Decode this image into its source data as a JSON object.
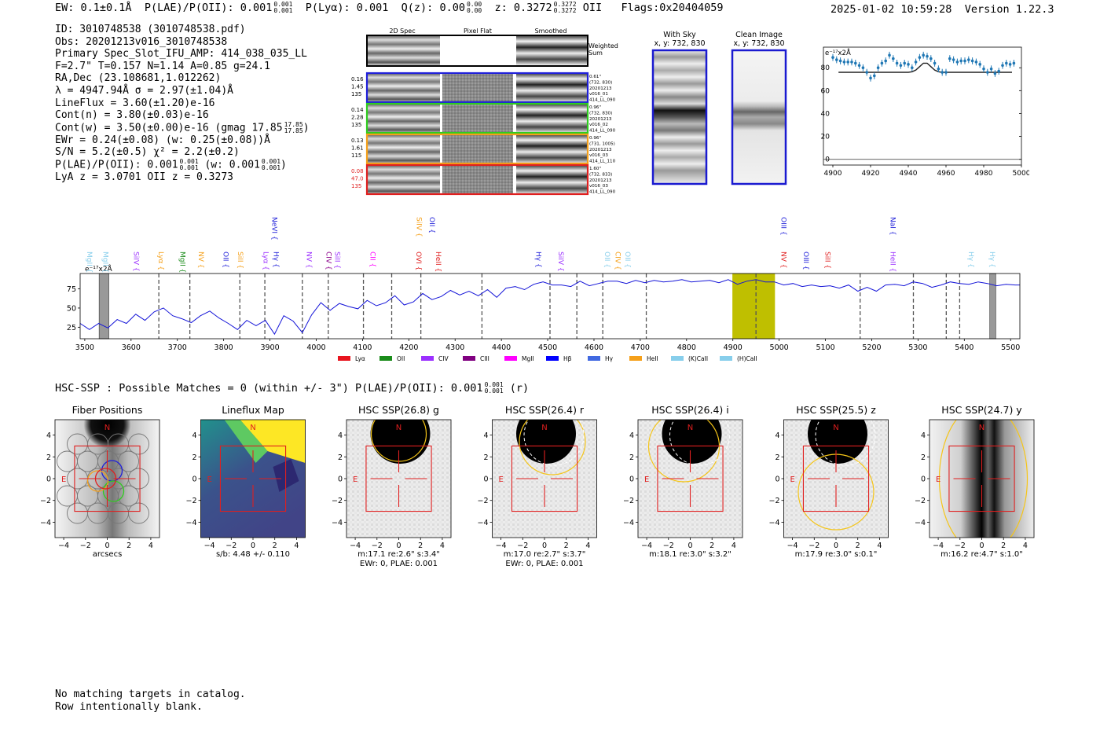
{
  "header": {
    "ew": "EW: 0.1±0.1Å",
    "plae_label": "P(LAE)/P(OII): 0.001",
    "plae_hi": "0.001",
    "plae_lo": "0.001",
    "plya": "P(Lyα): 0.001",
    "qz_label": "Q(z): 0.00",
    "qz_hi": "0.00",
    "qz_lo": "0.00",
    "z_label": "z: 0.3272",
    "z_hi": "0.3272",
    "z_lo": "0.3272",
    "z_line": "OII",
    "flags": "Flags:0x20404059",
    "datetime": "2025-01-02 10:59:28",
    "version": "Version 1.22.3"
  },
  "info": {
    "id": "ID: 3010748538 (3010748538.pdf)",
    "obs": "Obs: 20201213v016_3010748538",
    "primary": "Primary Spec_Slot_IFU_AMP: 414_038_035_LL",
    "fit": "F=2.7\"  T=0.157  N=1.14  A=0.85  g=24.1",
    "radec": "RA,Dec (23.108681,1.012262)",
    "lambda": "λ = 4947.94Å  σ = 2.97(±1.04)Å",
    "lineflux": "LineFlux = 3.60(±1.20)e-16",
    "contn": "Cont(n) = 3.80(±0.03)e-16",
    "contw": "Cont(w) = 3.50(±0.00)e-16 (gmag 17.85",
    "contw_hi": "17.85",
    "contw_lo": "17.85",
    "contw_end": ")",
    "ewr": "EWr = 0.24(±0.08) (w: 0.25(±0.08))Å",
    "sn": "S/N = 5.2(±0.5)  χ² = 2.2(±0.2)",
    "plae": "P(LAE)/P(OII): 0.001",
    "plae_hi": "0.001",
    "plae_lo": "0.001",
    "plae_w": "(w: 0.001",
    "plae_w_hi": "0.001",
    "plae_w_lo": "0.001",
    "plae_w_end": ")",
    "lyaz": "LyA z = 3.0701  OII z = 0.3273"
  },
  "spec_panel": {
    "col1": "2D Spec",
    "col2": "Pixel Flat",
    "col3": "Smoothed",
    "weighted": "Weighted",
    "sum": "Sum",
    "rows": [
      {
        "l1": "0.16",
        "l2": "1.45",
        "l3": "135",
        "color": "#1f1fd9",
        "r1": "0.61\"",
        "r2": "(732, 830)",
        "r3": "20201213",
        "r4": "v016_01",
        "r5": "414_LL_090"
      },
      {
        "l1": "0.14",
        "l2": "2.28",
        "l3": "135",
        "color": "#2ecc1f",
        "r1": "0.96\"",
        "r2": "(732, 830)",
        "r3": "20201213",
        "r4": "v016_02",
        "r5": "414_LL_090"
      },
      {
        "l1": "0.13",
        "l2": "1.61",
        "l3": "115",
        "color": "#f5a01a",
        "r1": "0.96\"",
        "r2": "(731, 1005)",
        "r3": "20201213",
        "r4": "v016_03",
        "r5": "414_LL_110"
      },
      {
        "l1": "0.08",
        "l2": "47.0",
        "l3": "135",
        "color": "#e01f1f",
        "r1": "1.60\"",
        "r2": "(732, 833)",
        "r3": "20201213",
        "r4": "v016_03",
        "r5": "414_LL_090"
      }
    ]
  },
  "sky_panel": {
    "title": "With Sky",
    "coords": "x, y: 732, 830"
  },
  "clean_panel": {
    "title": "Clean Image",
    "coords": "x, y: 732, 830"
  },
  "chart_data": [
    {
      "type": "scatter",
      "name": "line-zoom",
      "title": "",
      "unit_label": "e⁻¹⁷x2Å",
      "xlim": [
        4895,
        5000
      ],
      "ylim": [
        -5,
        98
      ],
      "xticks": [
        "4900",
        "4920",
        "4940",
        "4960",
        "4980",
        "5000"
      ],
      "xtick_values": [
        4900,
        4920,
        4940,
        4960,
        4980,
        5000
      ],
      "yticks": [
        "0",
        "20",
        "40",
        "60",
        "80"
      ],
      "ytick_values": [
        0,
        20,
        40,
        60,
        80
      ],
      "points_x": [
        4900,
        4902,
        4904,
        4906,
        4908,
        4910,
        4912,
        4914,
        4916,
        4918,
        4920,
        4922,
        4924,
        4926,
        4928,
        4930,
        4932,
        4934,
        4936,
        4938,
        4940,
        4942,
        4944,
        4946,
        4948,
        4950,
        4952,
        4954,
        4956,
        4958,
        4960,
        4962,
        4964,
        4966,
        4968,
        4970,
        4972,
        4974,
        4976,
        4978,
        4980,
        4982,
        4984,
        4986,
        4988,
        4990,
        4992,
        4994,
        4996
      ],
      "points_y": [
        89,
        87,
        86,
        85,
        85,
        85,
        84,
        82,
        80,
        76,
        71,
        73,
        80,
        84,
        86,
        91,
        88,
        84,
        82,
        84,
        83,
        80,
        85,
        89,
        91,
        90,
        88,
        84,
        79,
        76,
        76,
        88,
        87,
        85,
        86,
        86,
        87,
        86,
        85,
        83,
        79,
        76,
        79,
        75,
        77,
        82,
        84,
        83,
        84
      ],
      "model_x": [
        4903,
        4940,
        4942,
        4944,
        4946,
        4948,
        4950,
        4952,
        4954,
        4956,
        4958,
        4995
      ],
      "model_y": [
        76,
        76,
        76.5,
        78,
        81,
        84,
        84,
        81,
        78,
        76.5,
        76,
        76
      ]
    },
    {
      "type": "line",
      "name": "full-spectrum",
      "unit_label": "e⁻¹⁷x2Å",
      "xlim": [
        3490,
        5520
      ],
      "ylim": [
        10,
        95
      ],
      "xticks": [
        "3500",
        "3600",
        "3700",
        "3800",
        "3900",
        "4000",
        "4100",
        "4200",
        "4300",
        "4400",
        "4500",
        "4600",
        "4700",
        "4800",
        "4900",
        "5000",
        "5100",
        "5200",
        "5300",
        "5400",
        "5500"
      ],
      "xtick_values": [
        3500,
        3600,
        3700,
        3800,
        3900,
        4000,
        4100,
        4200,
        4300,
        4400,
        4500,
        4600,
        4700,
        4800,
        4900,
        5000,
        5100,
        5200,
        5300,
        5400,
        5500
      ],
      "yticks": [
        "25",
        "50",
        "75"
      ],
      "ytick_values": [
        25,
        50,
        75
      ],
      "x": [
        3490,
        3510,
        3530,
        3550,
        3570,
        3590,
        3610,
        3630,
        3650,
        3670,
        3690,
        3710,
        3730,
        3750,
        3770,
        3790,
        3810,
        3830,
        3850,
        3870,
        3890,
        3910,
        3930,
        3950,
        3970,
        3990,
        4010,
        4030,
        4050,
        4070,
        4090,
        4110,
        4130,
        4150,
        4170,
        4190,
        4210,
        4230,
        4250,
        4270,
        4290,
        4310,
        4330,
        4350,
        4370,
        4390,
        4410,
        4430,
        4450,
        4470,
        4490,
        4510,
        4530,
        4550,
        4570,
        4590,
        4610,
        4630,
        4650,
        4670,
        4690,
        4710,
        4730,
        4750,
        4770,
        4790,
        4810,
        4830,
        4850,
        4870,
        4890,
        4910,
        4930,
        4950,
        4970,
        4990,
        5010,
        5030,
        5050,
        5070,
        5090,
        5110,
        5130,
        5150,
        5170,
        5190,
        5210,
        5230,
        5250,
        5270,
        5290,
        5310,
        5330,
        5350,
        5370,
        5390,
        5410,
        5430,
        5450,
        5470,
        5490,
        5510,
        5520
      ],
      "y": [
        30,
        22,
        30,
        24,
        35,
        30,
        42,
        34,
        45,
        50,
        40,
        36,
        31,
        40,
        46,
        37,
        30,
        22,
        34,
        27,
        34,
        16,
        40,
        33,
        18,
        41,
        57,
        47,
        56,
        52,
        49,
        60,
        53,
        57,
        66,
        54,
        58,
        69,
        61,
        65,
        73,
        67,
        72,
        66,
        74,
        64,
        76,
        78,
        74,
        81,
        84,
        80,
        80,
        78,
        85,
        79,
        82,
        85,
        85,
        82,
        86,
        83,
        86,
        84,
        85,
        87,
        84,
        85,
        86,
        83,
        87,
        81,
        85,
        87,
        84,
        84,
        80,
        82,
        78,
        80,
        78,
        79,
        76,
        80,
        72,
        77,
        72,
        80,
        81,
        79,
        84,
        82,
        77,
        80,
        84,
        82,
        81,
        84,
        82,
        79,
        81,
        80,
        80
      ],
      "dashed_lines": [
        3660,
        3727,
        3835,
        3889,
        3970,
        4026,
        4102,
        4163,
        4226,
        4358,
        4505,
        4563,
        4619,
        4713,
        4950,
        5175,
        5290,
        5361,
        5390
      ],
      "highlight": [
        4899,
        4991
      ],
      "masked": [
        [
          3531,
          3552
        ],
        [
          5455,
          5468
        ]
      ],
      "line_labels": [
        {
          "label": "MgII",
          "x": 3500,
          "color": "#87ceeb",
          "row": 0
        },
        {
          "label": "MgII",
          "x": 3535,
          "color": "#87ceeb",
          "row": 0
        },
        {
          "label": "SiIV",
          "x": 3601,
          "color": "#9b30ff",
          "row": 0
        },
        {
          "label": "Lyα",
          "x": 3655,
          "color": "#f5a01a",
          "row": 0
        },
        {
          "label": "MgII",
          "x": 3701,
          "color": "#1a8c1a",
          "row": 0
        },
        {
          "label": "NV",
          "x": 3741,
          "color": "#f5a01a",
          "row": 0
        },
        {
          "label": "OII",
          "x": 3795,
          "color": "#1f1fd9",
          "row": 0
        },
        {
          "label": "SiII",
          "x": 3826,
          "color": "#f5a01a",
          "row": 0
        },
        {
          "label": "Lyα",
          "x": 3881,
          "color": "#9b30ff",
          "row": 0
        },
        {
          "label": "Hγ",
          "x": 3903,
          "color": "#1f1fd9",
          "row": 0
        },
        {
          "label": "NeVI",
          "x": 3900,
          "color": "#1f1fd9",
          "row": 1
        },
        {
          "label": "NV",
          "x": 3975,
          "color": "#9b30ff",
          "row": 0
        },
        {
          "label": "CIV",
          "x": 4017,
          "color": "#8b008b",
          "row": 0
        },
        {
          "label": "SiII",
          "x": 4036,
          "color": "#9b30ff",
          "row": 0
        },
        {
          "label": "CII",
          "x": 4112,
          "color": "#ff00ff",
          "row": 0
        },
        {
          "label": "OVI",
          "x": 4211,
          "color": "#e01f1f",
          "row": 0
        },
        {
          "label": "SiIV",
          "x": 4212,
          "color": "#f5a01a",
          "row": 1
        },
        {
          "label": "OII",
          "x": 4240,
          "color": "#1f1fd9",
          "row": 1
        },
        {
          "label": "HeII",
          "x": 4254,
          "color": "#e01f1f",
          "row": 0
        },
        {
          "label": "Hγ",
          "x": 4470,
          "color": "#1f1fd9",
          "row": 0
        },
        {
          "label": "SiIV",
          "x": 4519,
          "color": "#9b30ff",
          "row": 0
        },
        {
          "label": "OII",
          "x": 4619,
          "color": "#87ceeb",
          "row": 0
        },
        {
          "label": "CIV",
          "x": 4642,
          "color": "#f5a01a",
          "row": 0
        },
        {
          "label": "OII",
          "x": 4663,
          "color": "#87ceeb",
          "row": 0
        },
        {
          "label": "OIII",
          "x": 5000,
          "color": "#1f1fd9",
          "row": 1
        },
        {
          "label": "NV",
          "x": 5000,
          "color": "#e01f1f",
          "row": 0
        },
        {
          "label": "OIII",
          "x": 5048,
          "color": "#1f1fd9",
          "row": 0
        },
        {
          "label": "SiII",
          "x": 5095,
          "color": "#e01f1f",
          "row": 0
        },
        {
          "label": "NaI",
          "x": 5236,
          "color": "#1f1fd9",
          "row": 1
        },
        {
          "label": "HeII",
          "x": 5236,
          "color": "#9b30ff",
          "row": 0
        },
        {
          "label": "Hγ",
          "x": 5405,
          "color": "#87ceeb",
          "row": 0
        },
        {
          "label": "Hγ",
          "x": 5450,
          "color": "#87ceeb",
          "row": 0
        }
      ],
      "legend": [
        {
          "label": "Lyα",
          "color": "#e8141e"
        },
        {
          "label": "OII",
          "color": "#1a8c1a"
        },
        {
          "label": "CIV",
          "color": "#9b30ff"
        },
        {
          "label": "CIII",
          "color": "#800080"
        },
        {
          "label": "MgII",
          "color": "#ff00ff"
        },
        {
          "label": "Hβ",
          "color": "#0000ff"
        },
        {
          "label": "Hγ",
          "color": "#4169e1"
        },
        {
          "label": "HeII",
          "color": "#f5a01a"
        },
        {
          "label": "(K)CaII",
          "color": "#87ceeb"
        },
        {
          "label": "(H)CaII",
          "color": "#87ceeb"
        }
      ]
    }
  ],
  "hsc": {
    "title": "HSC-SSP : Possible Matches = 0 (within +/- 3\")  P(LAE)/P(OII): 0.001",
    "plae_hi": "0.001",
    "plae_lo": "0.001",
    "band": "(r)",
    "compass_n": "N",
    "compass_e": "E",
    "xticks": [
      "−4",
      "−2",
      "0",
      "2",
      "4"
    ],
    "yticks": [
      "4",
      "2",
      "0",
      "−2",
      "−4"
    ],
    "panels": [
      {
        "title": "Fiber Positions",
        "line1": "arcsecs",
        "line2": "",
        "kind": "fiber"
      },
      {
        "title": "Lineflux Map",
        "line1": "s/b: 4.48 +/- 0.110",
        "line2": "",
        "kind": "lineflux"
      },
      {
        "title": "HSC SSP(26.8) g",
        "line1": "m:17.1  re:2.6\"  s:3.4\"",
        "line2": "EWr: 0, PLAE: 0.001",
        "kind": "g"
      },
      {
        "title": "HSC SSP(26.4) r",
        "line1": "m:17.0  re:2.7\"  s:3.7\"",
        "line2": "EWr: 0, PLAE: 0.001",
        "kind": "r"
      },
      {
        "title": "HSC SSP(26.4) i",
        "line1": "m:18.1  re:3.0\"  s:3.2\"",
        "line2": "",
        "kind": "i"
      },
      {
        "title": "HSC SSP(25.5) z",
        "line1": "m:17.9  re:3.0\"  s:0.1\"",
        "line2": "",
        "kind": "z"
      },
      {
        "title": "HSC SSP(24.7) y",
        "line1": "m:16.2  re:4.7\"  s:1.0\"",
        "line2": "",
        "kind": "y"
      }
    ]
  },
  "footer": {
    "line1": "No matching targets in catalog.",
    "line2": "Row intentionally blank."
  }
}
